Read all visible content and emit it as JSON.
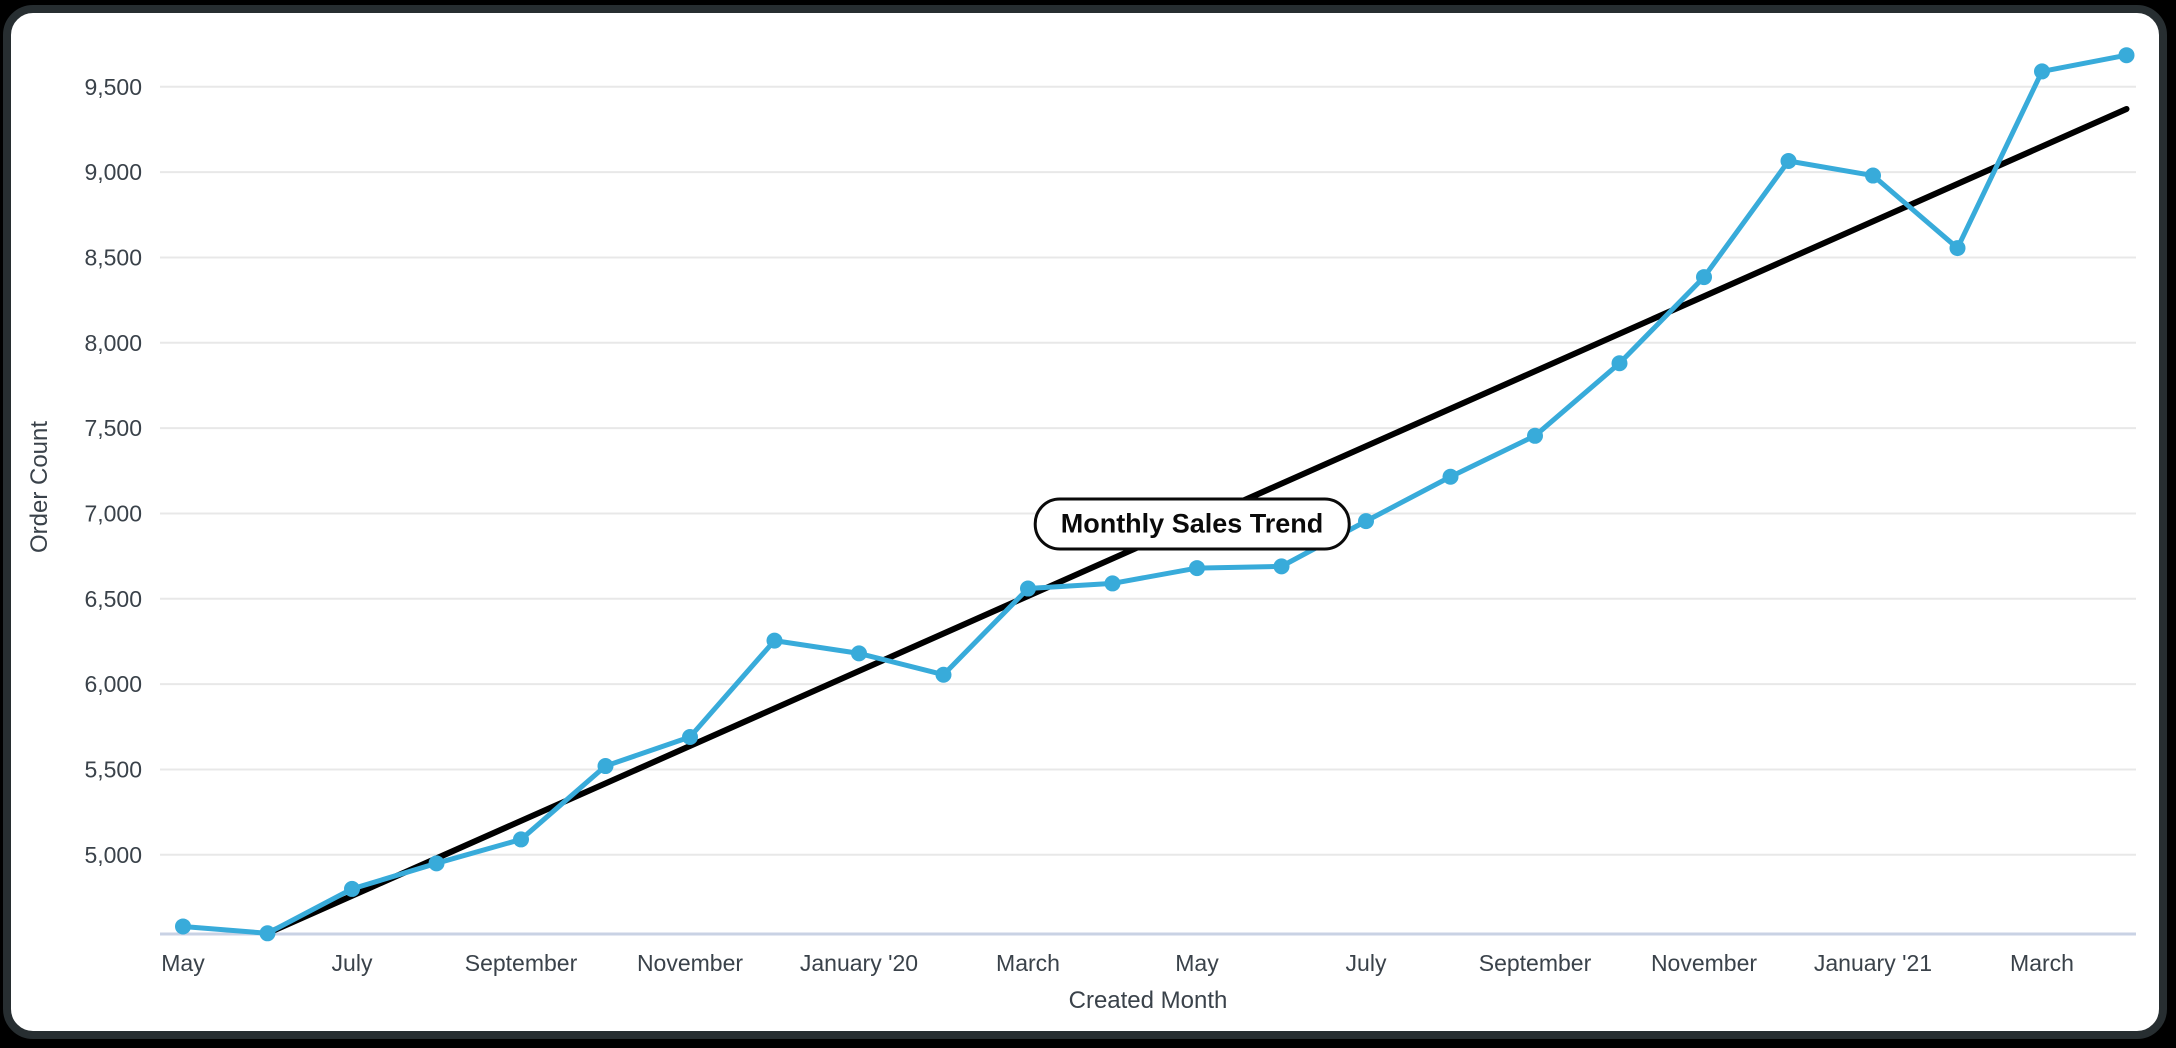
{
  "frame": {
    "page_background": "#000000",
    "card_background": "#ffffff",
    "card_border_color": "#272e31"
  },
  "chart_data": {
    "type": "line",
    "title": "Monthly Sales Trend",
    "xlabel": "Created Month",
    "ylabel": "Order Count",
    "legend_position": "none",
    "categories": [
      "May 2019",
      "June 2019",
      "July 2019",
      "August 2019",
      "September 2019",
      "October 2019",
      "November 2019",
      "December 2019",
      "January 2020",
      "February 2020",
      "March 2020",
      "April 2020",
      "May 2020",
      "June 2020",
      "July 2020",
      "August 2020",
      "September 2020",
      "October 2020",
      "November 2020",
      "December 2020",
      "January 2021",
      "February 2021",
      "March 2021",
      "April 2021"
    ],
    "x_tick_labels": [
      {
        "index": 0,
        "label": "May"
      },
      {
        "index": 2,
        "label": "July"
      },
      {
        "index": 4,
        "label": "September"
      },
      {
        "index": 6,
        "label": "November"
      },
      {
        "index": 8,
        "label": "January '20"
      },
      {
        "index": 10,
        "label": "March"
      },
      {
        "index": 12,
        "label": "May"
      },
      {
        "index": 14,
        "label": "July"
      },
      {
        "index": 16,
        "label": "September"
      },
      {
        "index": 18,
        "label": "November"
      },
      {
        "index": 20,
        "label": "January '21"
      },
      {
        "index": 22,
        "label": "March"
      }
    ],
    "series": [
      {
        "name": "Order Count",
        "color": "#38abda",
        "marker": "circle",
        "values": [
          4580,
          4540,
          4800,
          4950,
          5090,
          5520,
          5690,
          6255,
          6180,
          6055,
          6560,
          6590,
          6680,
          6690,
          6955,
          7215,
          7455,
          7880,
          8385,
          9065,
          8980,
          8555,
          9590,
          9685
        ]
      }
    ],
    "trendline": {
      "label": "Monthly Sales Trend",
      "color": "#000000",
      "start_index": 1,
      "start_value": 4540,
      "end_index": 23,
      "end_value": 9370
    },
    "y_axis": {
      "min": 4530,
      "max": 9835,
      "gridline_color": "#e8e8e8",
      "axis_line_color": "#c9d2e4",
      "ticks": [
        {
          "value": 5000,
          "label": "5,000"
        },
        {
          "value": 5500,
          "label": "5,500"
        },
        {
          "value": 6000,
          "label": "6,000"
        },
        {
          "value": 6500,
          "label": "6,500"
        },
        {
          "value": 7000,
          "label": "7,000"
        },
        {
          "value": 7500,
          "label": "7,500"
        },
        {
          "value": 8000,
          "label": "8,000"
        },
        {
          "value": 8500,
          "label": "8,500"
        },
        {
          "value": 9000,
          "label": "9,000"
        },
        {
          "value": 9500,
          "label": "9,500"
        }
      ]
    },
    "grid": true
  }
}
